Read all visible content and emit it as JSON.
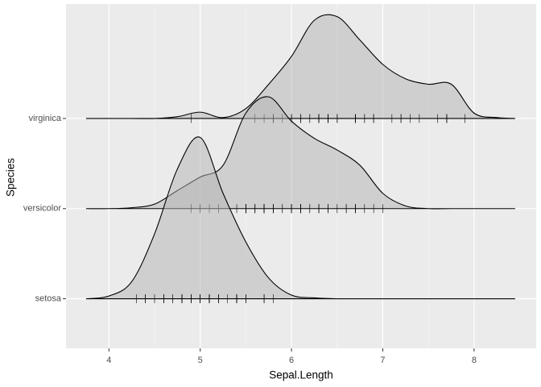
{
  "chart_data": {
    "type": "ridgeline",
    "x_label": "Sepal.Length",
    "y_label": "Species",
    "categories": [
      "setosa",
      "versicolor",
      "virginica"
    ],
    "x": [
      3.75,
      4.0,
      4.25,
      4.5,
      4.75,
      5.0,
      5.25,
      5.5,
      5.75,
      6.0,
      6.25,
      6.5,
      6.75,
      7.0,
      7.25,
      7.5,
      7.75,
      8.0,
      8.25,
      8.45
    ],
    "densities": [
      [
        0,
        0.03,
        0.19,
        0.72,
        1.44,
        1.79,
        1.17,
        0.63,
        0.23,
        0.04,
        0.01,
        0,
        0,
        0,
        0,
        0,
        0,
        0,
        0,
        0
      ],
      [
        0,
        0,
        0.01,
        0.05,
        0.2,
        0.35,
        0.48,
        1.06,
        1.24,
        0.97,
        0.78,
        0.65,
        0.48,
        0.17,
        0.03,
        0,
        0,
        0,
        0,
        0
      ],
      [
        0,
        0,
        0,
        0,
        0.02,
        0.07,
        0.01,
        0.11,
        0.38,
        0.69,
        1.09,
        1.13,
        0.87,
        0.6,
        0.44,
        0.38,
        0.38,
        0.06,
        0.01,
        0
      ]
    ],
    "points": [
      [
        5.1,
        4.9,
        4.7,
        4.6,
        5.0,
        5.4,
        4.6,
        5.0,
        4.4,
        4.9,
        5.4,
        4.8,
        4.8,
        4.3,
        5.8,
        5.7,
        5.4,
        5.1,
        5.7,
        5.1,
        5.4,
        5.1,
        4.6,
        5.1,
        4.8,
        5.0,
        5.0,
        5.2,
        5.2,
        4.7,
        4.8,
        5.4,
        5.2,
        5.5,
        4.9,
        5.0,
        5.5,
        4.9,
        4.4,
        5.1,
        5.0,
        4.5,
        4.4,
        5.0,
        5.1,
        4.8,
        5.1,
        4.6,
        5.3,
        5.0
      ],
      [
        7.0,
        6.4,
        6.9,
        5.5,
        6.5,
        5.7,
        6.3,
        4.9,
        6.6,
        5.2,
        5.0,
        5.9,
        6.0,
        6.1,
        5.6,
        6.7,
        5.6,
        5.8,
        6.2,
        5.6,
        5.9,
        6.1,
        6.3,
        6.1,
        6.4,
        6.6,
        6.8,
        6.7,
        6.0,
        5.7,
        5.5,
        5.5,
        5.8,
        6.0,
        5.4,
        6.0,
        6.7,
        6.3,
        5.6,
        5.5,
        5.5,
        6.1,
        5.8,
        5.0,
        5.6,
        5.7,
        5.7,
        6.2,
        5.1,
        5.7
      ],
      [
        6.3,
        5.8,
        7.1,
        6.3,
        6.5,
        7.6,
        4.9,
        7.3,
        6.7,
        7.2,
        6.5,
        6.4,
        6.8,
        5.7,
        5.8,
        6.4,
        6.5,
        7.7,
        7.7,
        6.0,
        6.9,
        5.6,
        7.7,
        6.3,
        6.7,
        7.2,
        6.2,
        6.1,
        6.4,
        7.2,
        7.4,
        7.9,
        6.4,
        6.3,
        6.1,
        7.7,
        6.3,
        6.4,
        6.0,
        6.9,
        6.7,
        6.9,
        5.8,
        6.8,
        6.7,
        6.7,
        6.3,
        6.5,
        6.2,
        5.9
      ]
    ],
    "fill": "#b3b3b3",
    "line_color": "#000000",
    "xlim": [
      3.53,
      8.68
    ],
    "xticks": [
      4,
      5,
      6,
      7,
      8
    ],
    "xminor": [
      4.5,
      5.5,
      6.5,
      7.5
    ],
    "ylim": [
      -0.55,
      3.27
    ],
    "grid": true
  }
}
